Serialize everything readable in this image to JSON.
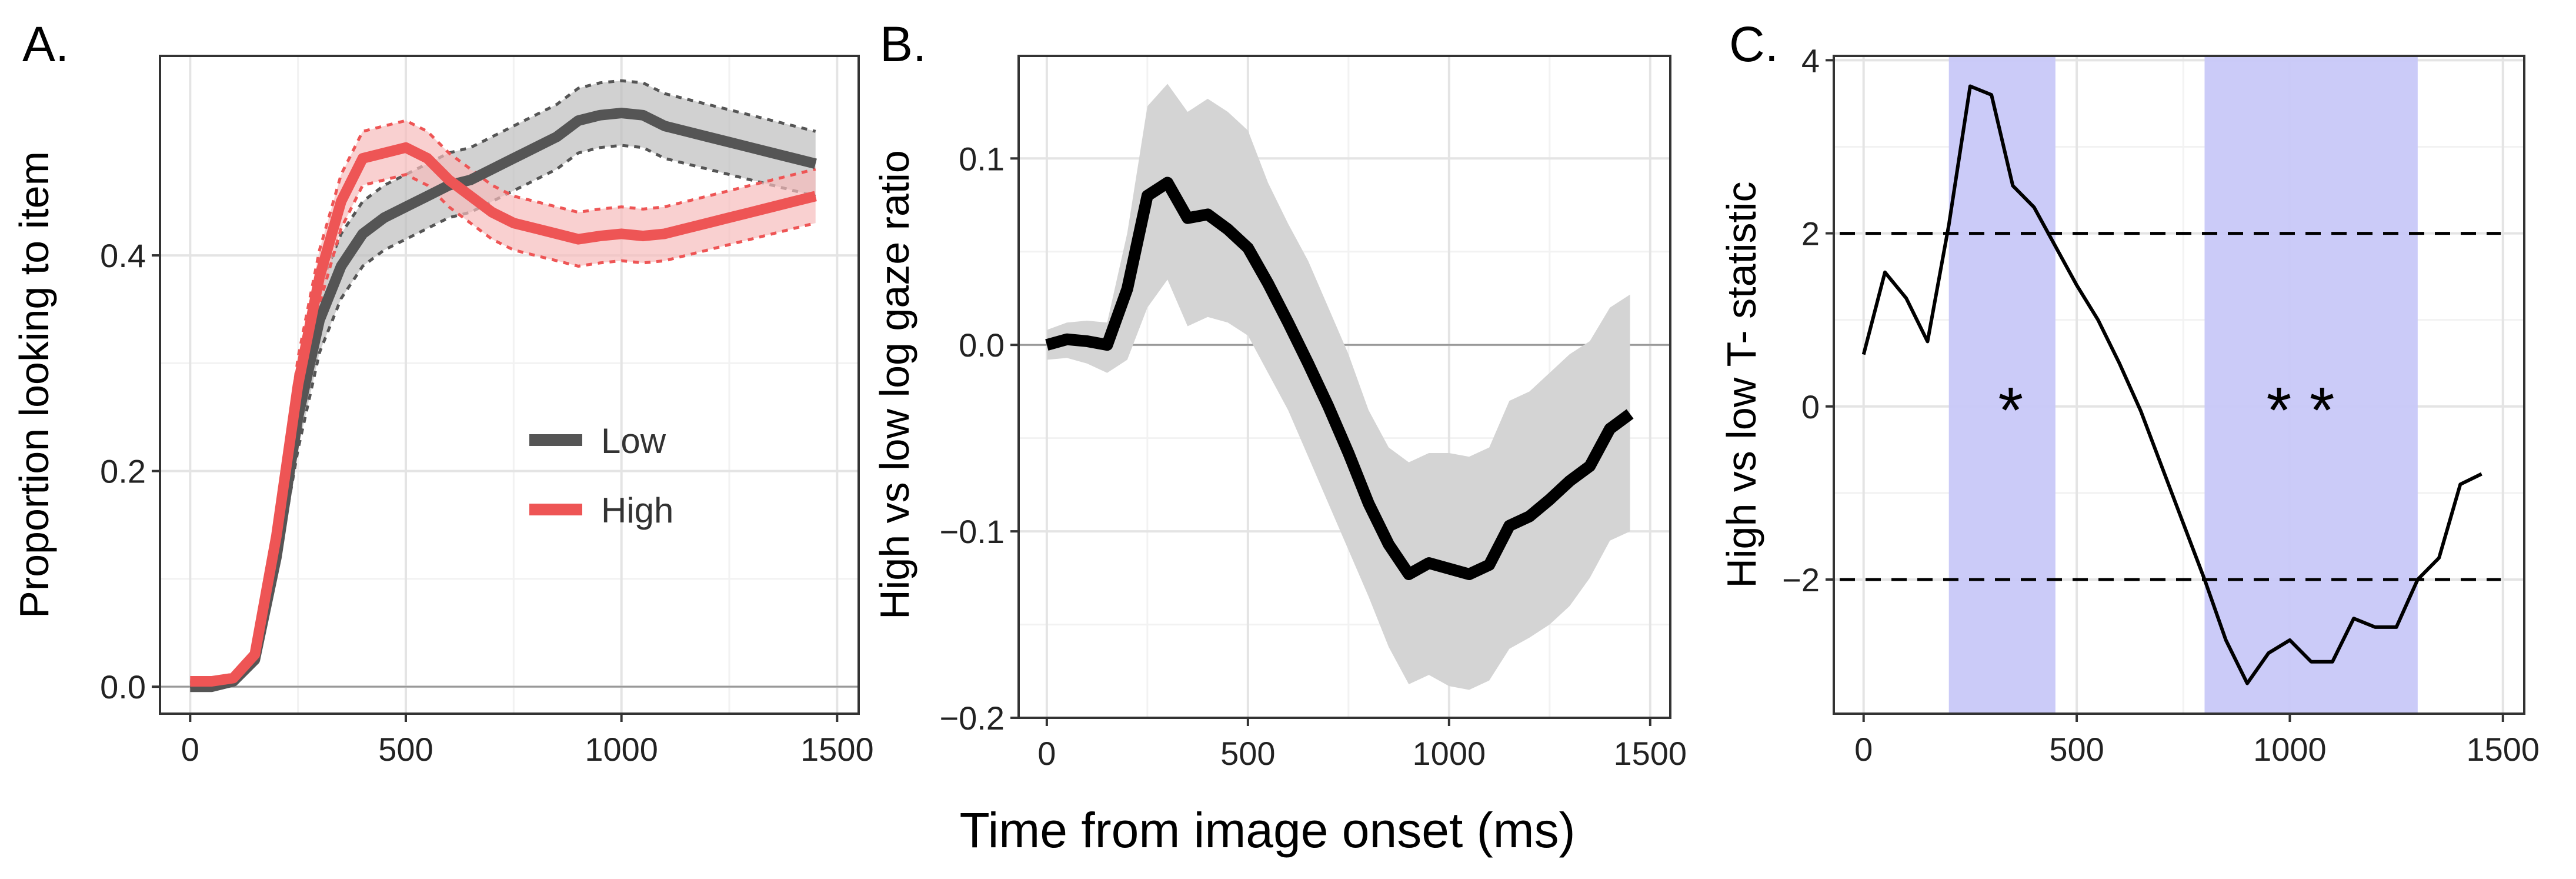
{
  "figure": {
    "shared_xlabel": "Time from image onset (ms)"
  },
  "chart_data": [
    {
      "type": "line",
      "panel_label": "A.",
      "ylabel": "Proportion looking to item",
      "xlabel": "",
      "xlim": [
        -70,
        1550
      ],
      "ylim": [
        -0.025,
        0.585
      ],
      "xticks": [
        0,
        500,
        1000,
        1500
      ],
      "yticks": [
        0.0,
        0.2,
        0.4
      ],
      "ytick_labels": [
        "0.0",
        "0.2",
        "0.4"
      ],
      "hline": 0,
      "legend": {
        "position": "center-right",
        "entries": [
          "Low",
          "High"
        ]
      },
      "colors": {
        "Low": "#555555",
        "High": "#ee5555",
        "Low_band": "#bdbdbd",
        "High_band": "#f6bcbc"
      },
      "x": [
        0,
        50,
        100,
        150,
        200,
        250,
        300,
        350,
        400,
        450,
        500,
        550,
        600,
        650,
        700,
        750,
        800,
        850,
        900,
        950,
        1000,
        1050,
        1100,
        1150,
        1200,
        1250,
        1300,
        1350,
        1400,
        1450
      ],
      "series": [
        {
          "name": "Low",
          "values": [
            0.0,
            0.0,
            0.005,
            0.025,
            0.12,
            0.25,
            0.34,
            0.39,
            0.42,
            0.435,
            0.445,
            0.455,
            0.465,
            0.47,
            0.48,
            0.49,
            0.5,
            0.51,
            0.525,
            0.53,
            0.532,
            0.53,
            0.52,
            0.515,
            0.51,
            0.505,
            0.5,
            0.495,
            0.49,
            0.485
          ],
          "ci": 0.03
        },
        {
          "name": "High",
          "values": [
            0.005,
            0.005,
            0.008,
            0.03,
            0.14,
            0.28,
            0.38,
            0.45,
            0.49,
            0.495,
            0.5,
            0.49,
            0.47,
            0.455,
            0.44,
            0.43,
            0.425,
            0.42,
            0.415,
            0.418,
            0.42,
            0.418,
            0.42,
            0.425,
            0.43,
            0.435,
            0.44,
            0.445,
            0.45,
            0.455
          ],
          "ci": 0.025
        }
      ]
    },
    {
      "type": "line",
      "panel_label": "B.",
      "ylabel": "High vs low log gaze ratio",
      "xlabel": "",
      "xlim": [
        -70,
        1550
      ],
      "ylim": [
        -0.2,
        0.155
      ],
      "xticks": [
        0,
        500,
        1000,
        1500
      ],
      "yticks": [
        -0.2,
        -0.1,
        0.0,
        0.1
      ],
      "ytick_labels": [
        "−0.2",
        "−0.1",
        "0.0",
        "0.1"
      ],
      "hline": 0,
      "colors": {
        "line": "#000000",
        "band": "#d4d4d4"
      },
      "x": [
        0,
        50,
        100,
        150,
        200,
        250,
        300,
        350,
        400,
        450,
        500,
        550,
        600,
        650,
        700,
        750,
        800,
        850,
        900,
        950,
        1000,
        1050,
        1100,
        1150,
        1200,
        1250,
        1300,
        1350,
        1400,
        1450
      ],
      "series": [
        {
          "name": "gaze ratio",
          "values": [
            0.0,
            0.003,
            0.002,
            0.0,
            0.03,
            0.08,
            0.087,
            0.068,
            0.07,
            0.062,
            0.052,
            0.033,
            0.012,
            -0.01,
            -0.033,
            -0.058,
            -0.085,
            -0.107,
            -0.123,
            -0.117,
            -0.12,
            -0.123,
            -0.118,
            -0.097,
            -0.092,
            -0.083,
            -0.073,
            -0.065,
            -0.045,
            -0.037
          ],
          "lower": [
            -0.008,
            -0.007,
            -0.01,
            -0.015,
            -0.008,
            0.02,
            0.035,
            0.01,
            0.015,
            0.012,
            0.005,
            -0.015,
            -0.035,
            -0.06,
            -0.085,
            -0.11,
            -0.135,
            -0.162,
            -0.182,
            -0.177,
            -0.183,
            -0.185,
            -0.18,
            -0.163,
            -0.157,
            -0.15,
            -0.14,
            -0.125,
            -0.105,
            -0.1
          ],
          "upper": [
            0.008,
            0.012,
            0.013,
            0.012,
            0.06,
            0.128,
            0.14,
            0.125,
            0.132,
            0.125,
            0.115,
            0.087,
            0.065,
            0.045,
            0.02,
            -0.005,
            -0.035,
            -0.055,
            -0.063,
            -0.058,
            -0.058,
            -0.06,
            -0.055,
            -0.03,
            -0.025,
            -0.015,
            -0.005,
            0.002,
            0.02,
            0.027
          ]
        }
      ]
    },
    {
      "type": "line",
      "panel_label": "C.",
      "ylabel": "High vs low T- statistic",
      "xlabel": "",
      "xlim": [
        -70,
        1550
      ],
      "ylim": [
        -3.55,
        4.05
      ],
      "xticks": [
        0,
        500,
        1000,
        1500
      ],
      "yticks": [
        -2,
        0,
        2,
        4
      ],
      "ytick_labels": [
        "−2",
        "0",
        "2",
        "4"
      ],
      "threshold_lines": [
        2,
        -2
      ],
      "significant_windows": [
        {
          "from": 200,
          "to": 450,
          "label": "*"
        },
        {
          "from": 800,
          "to": 1300,
          "label": "**"
        }
      ],
      "colors": {
        "line": "#000000",
        "window": "#c8c8f8"
      },
      "x": [
        0,
        50,
        100,
        150,
        200,
        250,
        300,
        350,
        400,
        450,
        500,
        550,
        600,
        650,
        700,
        750,
        800,
        850,
        900,
        950,
        1000,
        1050,
        1100,
        1150,
        1200,
        1250,
        1300,
        1350,
        1400,
        1450
      ],
      "series": [
        {
          "name": "T-statistic",
          "values": [
            0.6,
            1.55,
            1.25,
            0.75,
            2.1,
            3.7,
            3.6,
            2.55,
            2.3,
            1.85,
            1.4,
            1.0,
            0.5,
            -0.05,
            -0.7,
            -1.35,
            -2.0,
            -2.7,
            -3.2,
            -2.85,
            -2.7,
            -2.95,
            -2.95,
            -2.45,
            -2.55,
            -2.55,
            -2.0,
            -1.75,
            -0.9,
            -0.78
          ]
        }
      ]
    }
  ]
}
